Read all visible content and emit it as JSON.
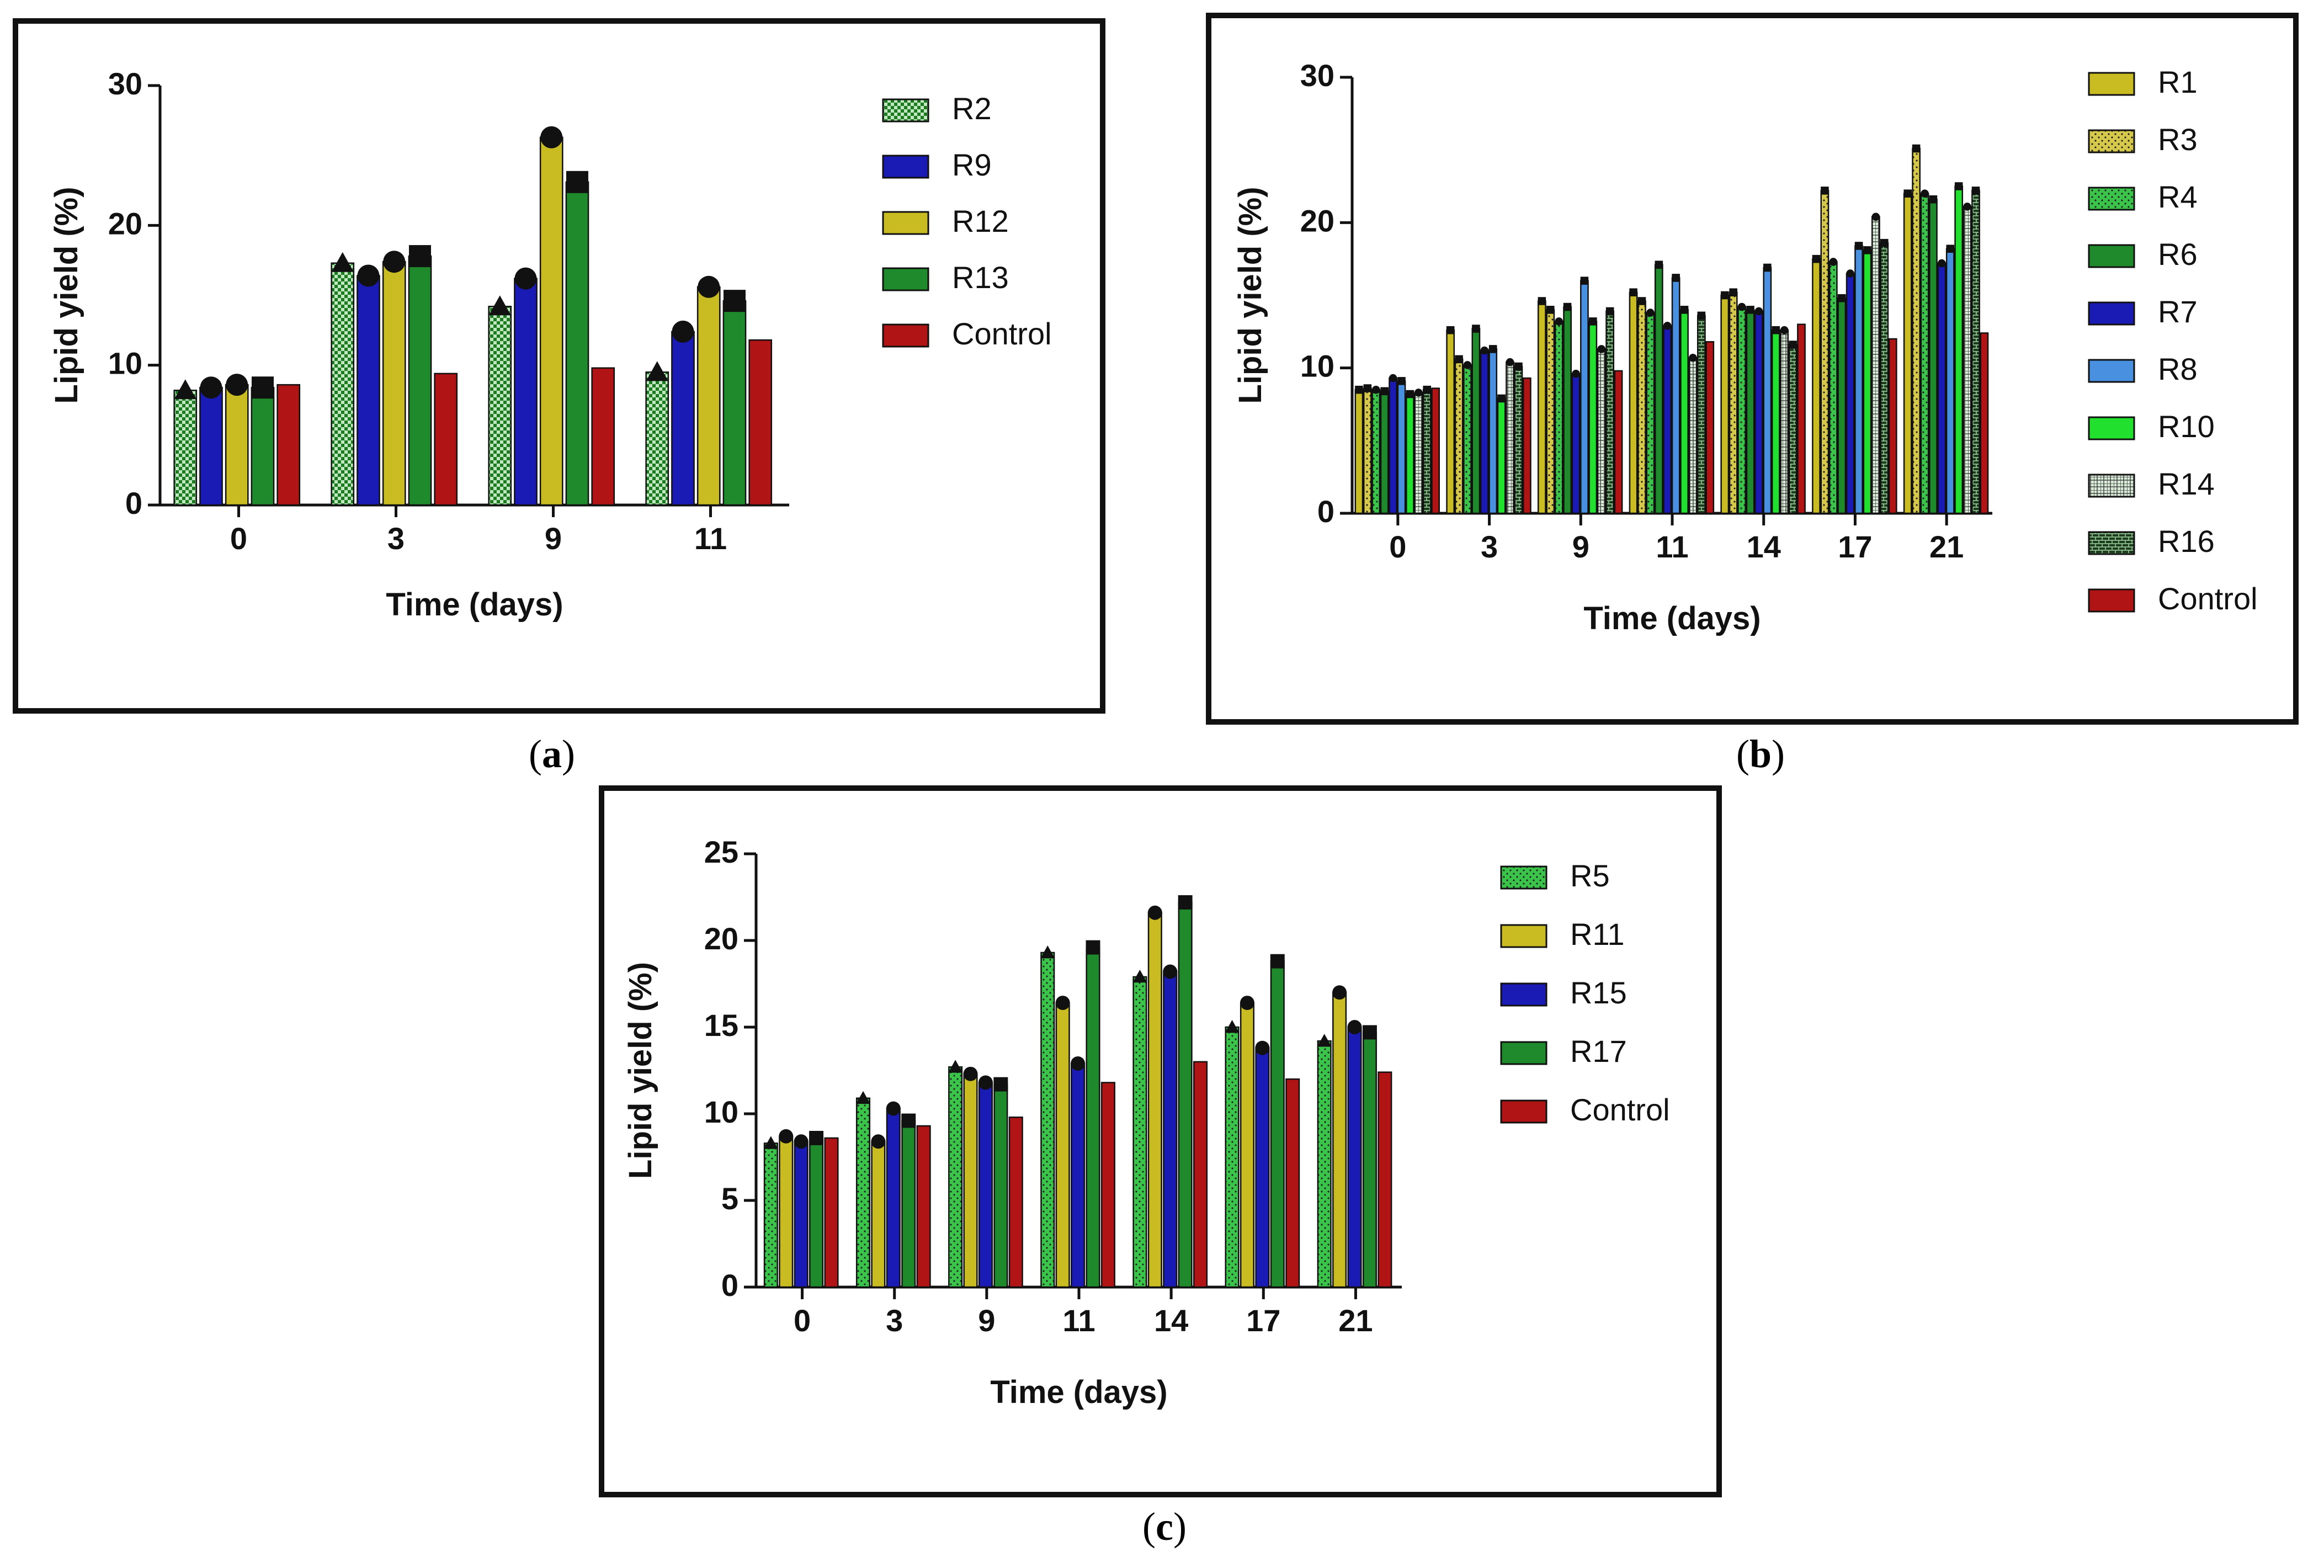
{
  "panels": [
    {
      "id": "a",
      "caption_open": "(",
      "caption_label": "a",
      "caption_close": ")",
      "chart_data": {
        "type": "bar",
        "title": "",
        "xlabel": "Time (days)",
        "ylabel": "Lipid yield (%)",
        "ylim": [
          0,
          30
        ],
        "yticks": [
          0,
          10,
          20,
          30
        ],
        "legend_position": "right",
        "categories": [
          "0",
          "3",
          "9",
          "11"
        ],
        "series": [
          {
            "name": "R2",
            "color": "#1e7a22",
            "pattern": "checker",
            "marker": "triangle",
            "values": [
              8.2,
              17.3,
              14.2,
              9.5
            ]
          },
          {
            "name": "R9",
            "color": "#1a1ab4",
            "pattern": "solid",
            "marker": "circle",
            "values": [
              8.4,
              16.4,
              16.2,
              12.4
            ]
          },
          {
            "name": "R12",
            "color": "#c8bc22",
            "pattern": "solid",
            "marker": "circle",
            "values": [
              8.6,
              17.4,
              26.3,
              15.6
            ]
          },
          {
            "name": "R13",
            "color": "#1f8a2c",
            "pattern": "solid",
            "marker": "square",
            "values": [
              8.4,
              17.8,
              23.1,
              14.6
            ]
          },
          {
            "name": "Control",
            "color": "#b01414",
            "pattern": "solid",
            "marker": "none",
            "values": [
              8.6,
              9.4,
              9.8,
              11.8
            ]
          }
        ]
      }
    },
    {
      "id": "b",
      "caption_open": "(",
      "caption_label": "b",
      "caption_close": ")",
      "chart_data": {
        "type": "bar",
        "title": "",
        "xlabel": "Time (days)",
        "ylabel": "Lipid yield (%)",
        "ylim": [
          0,
          30
        ],
        "yticks": [
          0,
          10,
          20,
          30
        ],
        "legend_position": "right",
        "categories": [
          "0",
          "3",
          "9",
          "11",
          "14",
          "17",
          "21"
        ],
        "series": [
          {
            "name": "R1",
            "color": "#c8bc22",
            "pattern": "solid",
            "marker": "square",
            "values": [
              8.5,
              12.6,
              14.6,
              15.2,
              15.0,
              17.5,
              22.0
            ]
          },
          {
            "name": "R3",
            "color": "#d6c84a",
            "pattern": "dots",
            "marker": "square",
            "values": [
              8.6,
              10.6,
              14.0,
              14.6,
              15.2,
              22.2,
              25.1
            ]
          },
          {
            "name": "R4",
            "color": "#3ac44a",
            "pattern": "dots",
            "marker": "circle",
            "values": [
              8.5,
              10.2,
              13.2,
              13.8,
              14.2,
              17.3,
              22.0
            ]
          },
          {
            "name": "R6",
            "color": "#1f8a2c",
            "pattern": "solid",
            "marker": "square",
            "values": [
              8.4,
              12.7,
              14.2,
              17.1,
              14.0,
              14.8,
              21.6
            ]
          },
          {
            "name": "R7",
            "color": "#1a1ab4",
            "pattern": "solid",
            "marker": "circle",
            "values": [
              9.3,
              11.2,
              9.6,
              12.9,
              13.9,
              16.5,
              17.2
            ]
          },
          {
            "name": "R8",
            "color": "#4a90e0",
            "pattern": "solid",
            "marker": "square",
            "values": [
              9.1,
              11.3,
              16.0,
              16.2,
              16.9,
              18.4,
              18.2
            ]
          },
          {
            "name": "R10",
            "color": "#22e02e",
            "pattern": "solid",
            "marker": "square",
            "values": [
              8.2,
              7.9,
              13.2,
              14.0,
              12.6,
              18.1,
              22.5
            ]
          },
          {
            "name": "R14",
            "color": "#d8ecd8",
            "pattern": "grid",
            "marker": "circle",
            "values": [
              8.3,
              10.4,
              11.3,
              10.7,
              12.6,
              20.4,
              21.1
            ]
          },
          {
            "name": "R16",
            "color": "#1e3a1e",
            "pattern": "brick",
            "marker": "square",
            "values": [
              8.5,
              10.1,
              13.9,
              13.6,
              11.6,
              18.6,
              22.2
            ]
          },
          {
            "name": "Control",
            "color": "#b01414",
            "pattern": "solid",
            "marker": "none",
            "values": [
              8.6,
              9.3,
              9.8,
              11.8,
              13.0,
              12.0,
              12.4
            ]
          }
        ]
      }
    },
    {
      "id": "c",
      "caption_open": "(",
      "caption_label": "c",
      "caption_close": ")",
      "chart_data": {
        "type": "bar",
        "title": "",
        "xlabel": "Time (days)",
        "ylabel": "Lipid yield (%)",
        "ylim": [
          0,
          25
        ],
        "yticks": [
          0,
          5,
          10,
          15,
          20,
          25
        ],
        "legend_position": "right",
        "categories": [
          "0",
          "3",
          "9",
          "11",
          "14",
          "17",
          "21"
        ],
        "series": [
          {
            "name": "R5",
            "color": "#3ac44a",
            "pattern": "dots",
            "marker": "triangle",
            "values": [
              8.3,
              10.9,
              12.7,
              19.3,
              17.9,
              15.0,
              14.2
            ]
          },
          {
            "name": "R11",
            "color": "#c8bc22",
            "pattern": "solid",
            "marker": "circle",
            "values": [
              8.7,
              8.4,
              12.3,
              16.4,
              21.6,
              16.4,
              17.0
            ]
          },
          {
            "name": "R15",
            "color": "#1a1ab4",
            "pattern": "solid",
            "marker": "circle",
            "values": [
              8.4,
              10.3,
              11.8,
              12.9,
              18.2,
              13.8,
              15.0
            ]
          },
          {
            "name": "R17",
            "color": "#1f8a2c",
            "pattern": "solid",
            "marker": "square",
            "values": [
              8.6,
              9.6,
              11.7,
              19.6,
              22.2,
              18.8,
              14.7
            ]
          },
          {
            "name": "Control",
            "color": "#b01414",
            "pattern": "solid",
            "marker": "none",
            "values": [
              8.6,
              9.3,
              9.8,
              11.8,
              13.0,
              12.0,
              12.4
            ]
          }
        ]
      }
    }
  ]
}
